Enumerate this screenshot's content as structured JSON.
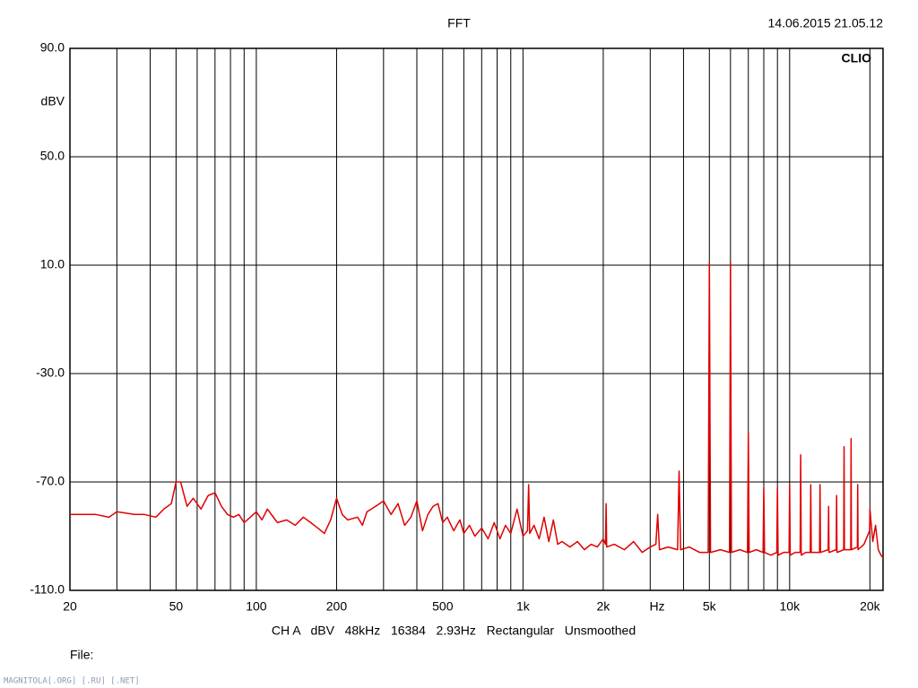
{
  "chart_data": {
    "type": "line",
    "title": "FFT",
    "timestamp": "14.06.2015 21.05.12",
    "brand": "CLIO",
    "x_unit": "Hz",
    "y_unit": "dBV",
    "footer": "CH A   dBV   48kHz   16384   2.93Hz   Rectangular   Unsmoothed",
    "file_label": "File:",
    "watermark": "MAGNITOLA[.ORG] [.RU] [.NET]",
    "xscale": "log",
    "grid": true,
    "xlim": [
      20,
      22400
    ],
    "ylim": [
      -110,
      90
    ],
    "xticks": [
      20,
      50,
      100,
      200,
      500,
      {
        "value": 1000,
        "label": "1k"
      },
      {
        "value": 2000,
        "label": "2k"
      },
      {
        "value": 5000,
        "label": "5k"
      },
      {
        "value": 10000,
        "label": "10k"
      },
      {
        "value": 20000,
        "label": "20k"
      }
    ],
    "xgrid_minor": [
      30,
      40,
      60,
      70,
      80,
      90,
      300,
      400,
      600,
      700,
      800,
      900,
      3000,
      4000,
      6000,
      7000,
      8000,
      9000
    ],
    "yticks": [
      {
        "value": 90,
        "label": "90.0"
      },
      {
        "value": 50,
        "label": "50.0"
      },
      {
        "value": 10,
        "label": "10.0"
      },
      {
        "value": -30,
        "label": "-30.0"
      },
      {
        "value": -70,
        "label": "-70.0"
      },
      {
        "value": -110,
        "label": "-110.0"
      }
    ],
    "color": "#e00000",
    "x": [
      20,
      25,
      28,
      30,
      35,
      38,
      42,
      45,
      48,
      50,
      52,
      55,
      58,
      62,
      66,
      70,
      74,
      78,
      82,
      86,
      90,
      95,
      100,
      105,
      110,
      120,
      130,
      140,
      150,
      160,
      170,
      180,
      190,
      200,
      210,
      220,
      240,
      250,
      260,
      280,
      300,
      320,
      340,
      360,
      380,
      400,
      420,
      440,
      460,
      480,
      500,
      520,
      550,
      580,
      600,
      630,
      660,
      700,
      740,
      780,
      820,
      860,
      900,
      950,
      1000,
      1040,
      1050,
      1060,
      1100,
      1150,
      1200,
      1250,
      1300,
      1350,
      1400,
      1500,
      1600,
      1700,
      1800,
      1900,
      2000,
      2040,
      2050,
      2060,
      2200,
      2400,
      2600,
      2800,
      3000,
      3150,
      3200,
      3250,
      3500,
      3800,
      3850,
      3900,
      4200,
      4600,
      4950,
      5000,
      5050,
      5500,
      5950,
      6000,
      6050,
      6500,
      6950,
      7000,
      7050,
      7500,
      7950,
      8000,
      8050,
      8500,
      8950,
      9000,
      9050,
      9500,
      9950,
      10000,
      10050,
      10500,
      10950,
      11000,
      11050,
      11500,
      11950,
      12000,
      12050,
      12950,
      13000,
      13050,
      13950,
      14000,
      14050,
      14950,
      15000,
      15050,
      15950,
      16000,
      16050,
      16950,
      17000,
      17050,
      17950,
      18000,
      18050,
      19000,
      19950,
      20000,
      20500,
      21000,
      21500,
      22000,
      22400
    ],
    "values": [
      -82,
      -82,
      -83,
      -81,
      -82,
      -82,
      -83,
      -80,
      -78,
      -70,
      -70,
      -79,
      -76,
      -80,
      -75,
      -74,
      -79,
      -82,
      -83,
      -82,
      -85,
      -83,
      -81,
      -84,
      -80,
      -85,
      -84,
      -86,
      -83,
      -85,
      -87,
      -89,
      -84,
      -76,
      -82,
      -84,
      -83,
      -86,
      -81,
      -79,
      -77,
      -82,
      -78,
      -86,
      -83,
      -77,
      -88,
      -82,
      -79,
      -78,
      -85,
      -83,
      -88,
      -84,
      -89,
      -86,
      -90,
      -87,
      -91,
      -85,
      -91,
      -86,
      -89,
      -80,
      -90,
      -88,
      -71,
      -89,
      -86,
      -91,
      -83,
      -92,
      -84,
      -93,
      -92,
      -94,
      -92,
      -95,
      -93,
      -94,
      -91,
      -93,
      -78,
      -94,
      -93,
      -95,
      -92,
      -96,
      -94,
      -93,
      -82,
      -95,
      -94,
      -95,
      -66,
      -95,
      -94,
      -96,
      -96,
      11,
      -96,
      -95,
      -96,
      11,
      -96,
      -95,
      -96,
      -52,
      -96,
      -95,
      -96,
      -72,
      -96,
      -97,
      -96,
      -72,
      -97,
      -96,
      -96,
      -71,
      -97,
      -96,
      -96,
      -60,
      -97,
      -96,
      -96,
      -71,
      -96,
      -96,
      -71,
      -96,
      -95,
      -79,
      -96,
      -95,
      -75,
      -96,
      -95,
      -57,
      -95,
      -95,
      -54,
      -95,
      -94,
      -71,
      -95,
      -93,
      -88,
      -80,
      -92,
      -86,
      -95,
      -97,
      -98
    ]
  }
}
